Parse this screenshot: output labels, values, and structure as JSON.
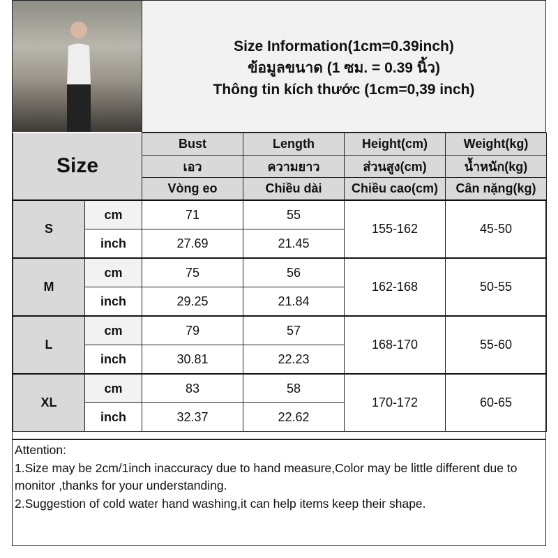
{
  "header": {
    "lines": [
      "Size Information(1cm=0.39inch)",
      "ข้อมูลขนาด (1 ซม. = 0.39 นิ้ว)",
      "Thông tin kích thước (1cm=0,39 inch)"
    ]
  },
  "table": {
    "size_label": "Size",
    "columns": [
      {
        "en": "Bust",
        "th": "เอว",
        "vi": "Vòng eo"
      },
      {
        "en": "Length",
        "th": "ความยาว",
        "vi": "Chiều dài"
      },
      {
        "en": "Height(cm)",
        "th": "ส่วนสูง(cm)",
        "vi": "Chiều cao(cm)"
      },
      {
        "en": "Weight(kg)",
        "th": "น้ำหนัก(kg)",
        "vi": "Cân nặng(kg)"
      }
    ],
    "unit_cm": "cm",
    "unit_inch": "inch",
    "rows": [
      {
        "size": "S",
        "bust_cm": "71",
        "length_cm": "55",
        "bust_in": "27.69",
        "length_in": "21.45",
        "height": "155-162",
        "weight": "45-50"
      },
      {
        "size": "M",
        "bust_cm": "75",
        "length_cm": "56",
        "bust_in": "29.25",
        "length_in": "21.84",
        "height": "162-168",
        "weight": "50-55"
      },
      {
        "size": "L",
        "bust_cm": "79",
        "length_cm": "57",
        "bust_in": "30.81",
        "length_in": "22.23",
        "height": "168-170",
        "weight": "55-60"
      },
      {
        "size": "XL",
        "bust_cm": "83",
        "length_cm": "58",
        "bust_in": "32.37",
        "length_in": "22.62",
        "height": "170-172",
        "weight": "60-65"
      }
    ]
  },
  "attention": {
    "title": "Attention:",
    "items": [
      "1.Size may be 2cm/1inch inaccuracy due to hand measure,Color may be little different due to monitor ,thanks for your understanding.",
      "2.Suggestion of cold water hand washing,it can help items keep their shape."
    ]
  }
}
